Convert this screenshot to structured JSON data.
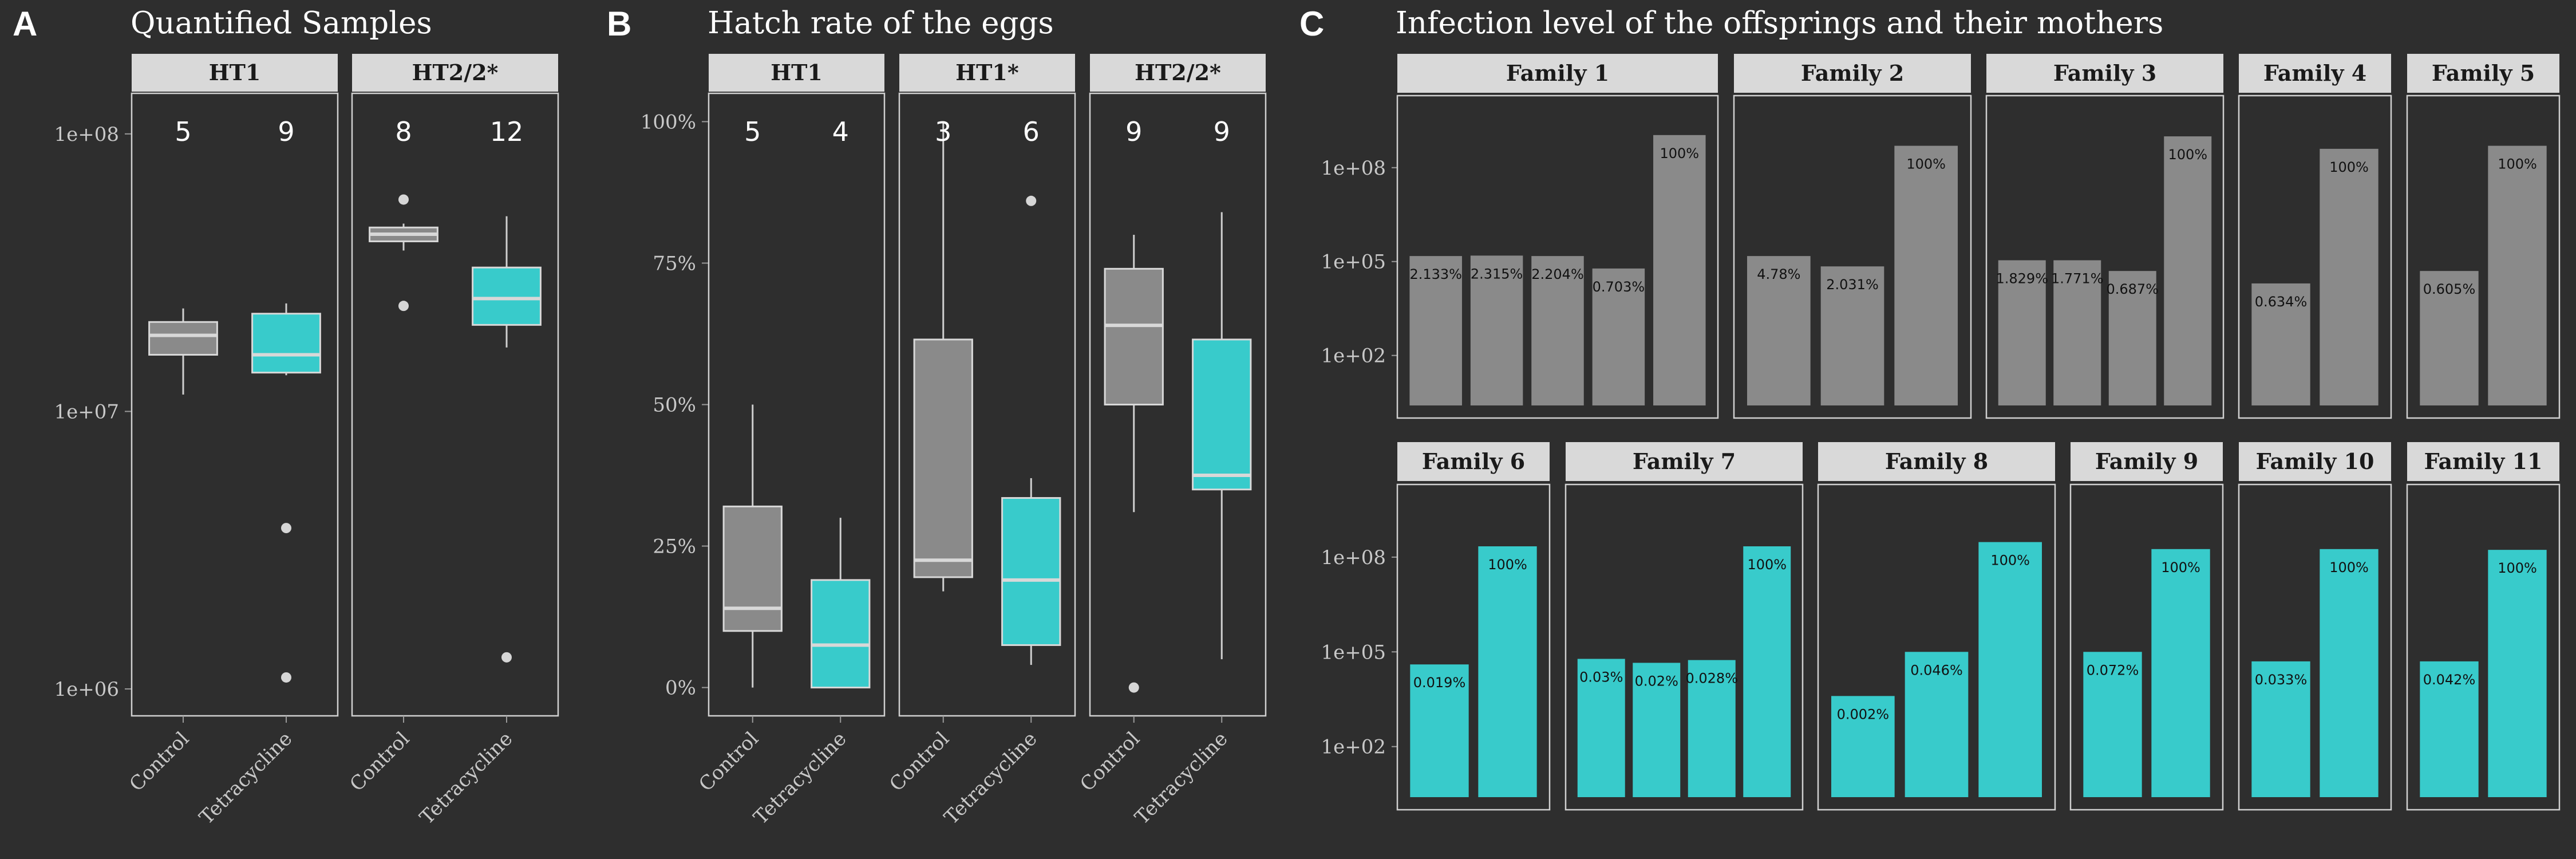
{
  "panels": {
    "A": {
      "letter": "A",
      "title": "Quantified Samples"
    },
    "B": {
      "letter": "B",
      "title": "Hatch rate of the eggs"
    },
    "C": {
      "letter": "C",
      "title": "Infection level of the offsprings and their mothers"
    }
  },
  "colors": {
    "control": "#8a8a8a",
    "tetracycline": "#38cbcb",
    "background": "#2e2e2e",
    "strip": "#d9d9d9",
    "frame": "#d0d0d0"
  },
  "chart_data": [
    {
      "id": "A",
      "type": "box",
      "title": "Quantified Samples",
      "y_scale": "log10",
      "ylim": [
        800000,
        140000000
      ],
      "y_ticks": [
        "1e+06",
        "1e+07",
        "1e+08"
      ],
      "categories": [
        "Control",
        "Tetracycline"
      ],
      "facets": [
        {
          "name": "HT1",
          "boxes": [
            {
              "group": "Control",
              "n": "5",
              "min": 11500000,
              "q1": 16000000,
              "median": 18800000,
              "q3": 21000000,
              "max": 23500000,
              "outliers": []
            },
            {
              "group": "Tetracycline",
              "n": "9",
              "min": 13500000,
              "q1": 13800000,
              "median": 16000000,
              "q3": 22500000,
              "max": 24500000,
              "outliers": [
                3800000,
                1100000
              ]
            }
          ]
        },
        {
          "name": "HT2/2*",
          "boxes": [
            {
              "group": "Control",
              "n": "8",
              "min": 38000000,
              "q1": 41000000,
              "median": 43500000,
              "q3": 46000000,
              "max": 47500000,
              "outliers": [
                58000000,
                24000000
              ]
            },
            {
              "group": "Tetracycline",
              "n": "12",
              "min": 17000000,
              "q1": 20500000,
              "median": 25500000,
              "q3": 33000000,
              "max": 50500000,
              "outliers": [
                1300000
              ]
            }
          ]
        }
      ]
    },
    {
      "id": "B",
      "type": "box",
      "title": "Hatch rate of the eggs",
      "ylim": [
        -0.05,
        1.05
      ],
      "y_ticks": [
        [
          0,
          "0%"
        ],
        [
          0.25,
          "25%"
        ],
        [
          0.5,
          "50%"
        ],
        [
          0.75,
          "75%"
        ],
        [
          1,
          "100%"
        ]
      ],
      "categories": [
        "Control",
        "Tetracycline"
      ],
      "facets": [
        {
          "name": "HT1",
          "boxes": [
            {
              "group": "Control",
              "n": "5",
              "min": 0.0,
              "q1": 0.1,
              "median": 0.14,
              "q3": 0.32,
              "max": 0.5,
              "outliers": []
            },
            {
              "group": "Tetracycline",
              "n": "4",
              "min": 0.0,
              "q1": 0.0,
              "median": 0.075,
              "q3": 0.19,
              "max": 0.3,
              "outliers": []
            }
          ]
        },
        {
          "name": "HT1*",
          "boxes": [
            {
              "group": "Control",
              "n": "3",
              "min": 0.17,
              "q1": 0.195,
              "median": 0.225,
              "q3": 0.615,
              "max": 1.0,
              "outliers": []
            },
            {
              "group": "Tetracycline",
              "n": "6",
              "min": 0.04,
              "q1": 0.075,
              "median": 0.19,
              "q3": 0.335,
              "max": 0.37,
              "outliers": [
                0.86
              ]
            }
          ]
        },
        {
          "name": "HT2/2*",
          "boxes": [
            {
              "group": "Control",
              "n": "9",
              "min": 0.31,
              "q1": 0.5,
              "median": 0.64,
              "q3": 0.74,
              "max": 0.8,
              "outliers": [
                0.0
              ]
            },
            {
              "group": "Tetracycline",
              "n": "9",
              "min": 0.05,
              "q1": 0.35,
              "median": 0.375,
              "q3": 0.615,
              "max": 0.84,
              "outliers": []
            }
          ]
        }
      ]
    },
    {
      "id": "C",
      "type": "bar",
      "title": "Infection level of the offsprings and their mothers",
      "y_scale": "log10",
      "ylim": [
        1,
        20000000000
      ],
      "y_ticks": [
        "1e+02",
        "1e+05",
        "1e+08"
      ],
      "facets": [
        {
          "name": "Family 1",
          "group": "Control",
          "values": [
            150000,
            155000,
            150000,
            60000,
            1100000000
          ],
          "labels": [
            "2.133%",
            "2.315%",
            "2.204%",
            "0.703%",
            "100%"
          ]
        },
        {
          "name": "Family 2",
          "group": "Control",
          "values": [
            150000,
            70000,
            500000000
          ],
          "labels": [
            "4.78%",
            "2.031%",
            "100%"
          ]
        },
        {
          "name": "Family 3",
          "group": "Control",
          "values": [
            110000,
            110000,
            50000,
            1000000000
          ],
          "labels": [
            "1.829%",
            "1.771%",
            "0.687%",
            "100%"
          ]
        },
        {
          "name": "Family 4",
          "group": "Control",
          "values": [
            20000,
            400000000
          ],
          "labels": [
            "0.634%",
            "100%"
          ]
        },
        {
          "name": "Family 5",
          "group": "Control",
          "values": [
            50000,
            500000000
          ],
          "labels": [
            "0.605%",
            "100%"
          ]
        },
        {
          "name": "Family 6",
          "group": "Tetracycline",
          "values": [
            40000,
            220000000
          ],
          "labels": [
            "0.019%",
            "100%"
          ]
        },
        {
          "name": "Family 7",
          "group": "Tetracycline",
          "values": [
            60000,
            45000,
            55000,
            220000000
          ],
          "labels": [
            "0.03%",
            "0.02%",
            "0.028%",
            "100%"
          ]
        },
        {
          "name": "Family 8",
          "group": "Tetracycline",
          "values": [
            4000,
            100000,
            300000000
          ],
          "labels": [
            "0.002%",
            "0.046%",
            "100%"
          ]
        },
        {
          "name": "Family 9",
          "group": "Tetracycline",
          "values": [
            100000,
            180000000
          ],
          "labels": [
            "0.072%",
            "100%"
          ]
        },
        {
          "name": "Family 10",
          "group": "Tetracycline",
          "values": [
            50000,
            180000000
          ],
          "labels": [
            "0.033%",
            "100%"
          ]
        },
        {
          "name": "Family 11",
          "group": "Tetracycline",
          "values": [
            50000,
            170000000
          ],
          "labels": [
            "0.042%",
            "100%"
          ]
        }
      ]
    }
  ]
}
